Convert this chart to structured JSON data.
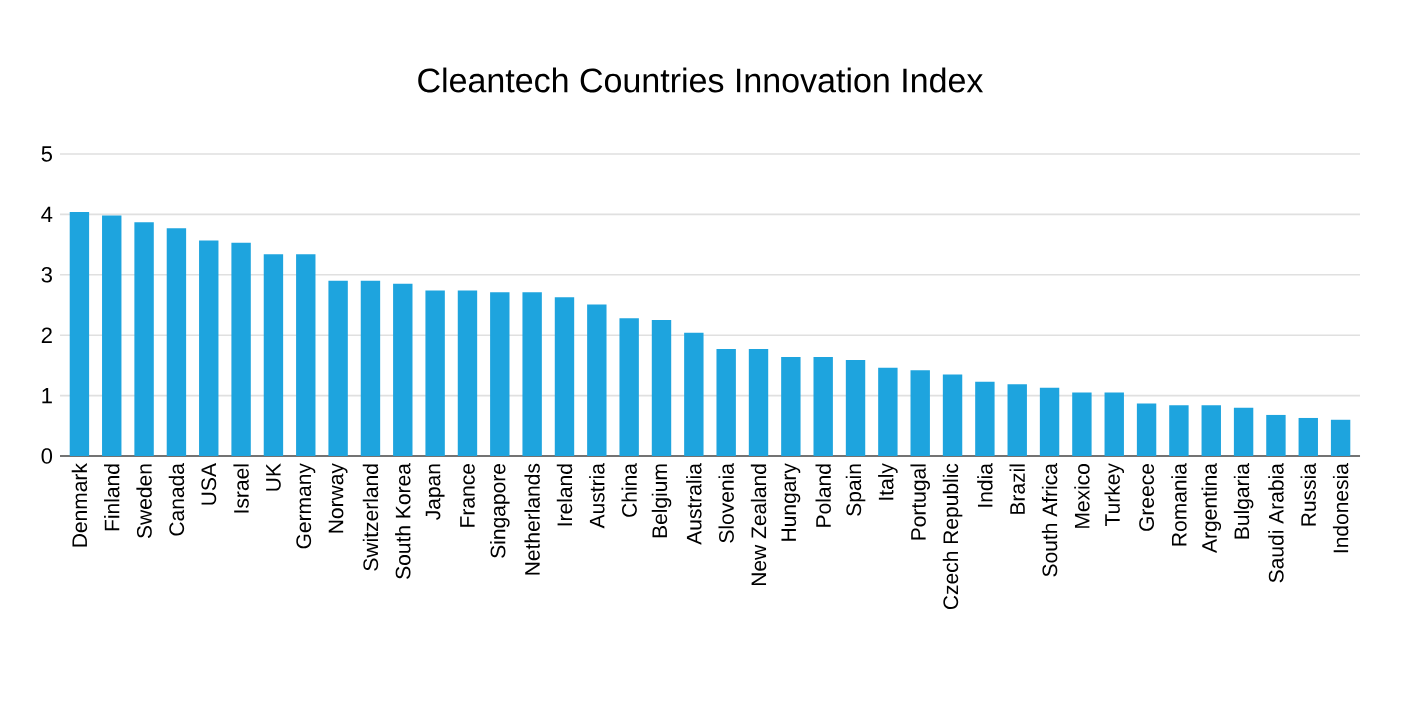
{
  "chart_data": {
    "type": "bar",
    "title": "Cleantech Countries Innovation Index",
    "categories": [
      "Denmark",
      "Finland",
      "Sweden",
      "Canada",
      "USA",
      "Israel",
      "UK",
      "Germany",
      "Norway",
      "Switzerland",
      "South Korea",
      "Japan",
      "France",
      "Singapore",
      "Netherlands",
      "Ireland",
      "Austria",
      "China",
      "Belgium",
      "Australia",
      "Slovenia",
      "New Zealand",
      "Hungary",
      "Poland",
      "Spain",
      "Italy",
      "Portugal",
      "Czech Republic",
      "India",
      "Brazil",
      "South Africa",
      "Mexico",
      "Turkey",
      "Greece",
      "Romania",
      "Argentina",
      "Bulgaria",
      "Saudi Arabia",
      "Russia",
      "Indonesia"
    ],
    "values": [
      4.04,
      3.98,
      3.87,
      3.77,
      3.57,
      3.53,
      3.34,
      3.34,
      2.9,
      2.9,
      2.85,
      2.74,
      2.74,
      2.71,
      2.71,
      2.63,
      2.51,
      2.28,
      2.25,
      2.04,
      1.77,
      1.77,
      1.64,
      1.64,
      1.59,
      1.46,
      1.42,
      1.35,
      1.23,
      1.19,
      1.13,
      1.05,
      1.05,
      0.87,
      0.84,
      0.84,
      0.8,
      0.68,
      0.63,
      0.6
    ],
    "color": "#1ea4de",
    "ylim": [
      0,
      5
    ],
    "yticks": [
      0,
      1,
      2,
      3,
      4,
      5
    ],
    "grid": "y"
  }
}
